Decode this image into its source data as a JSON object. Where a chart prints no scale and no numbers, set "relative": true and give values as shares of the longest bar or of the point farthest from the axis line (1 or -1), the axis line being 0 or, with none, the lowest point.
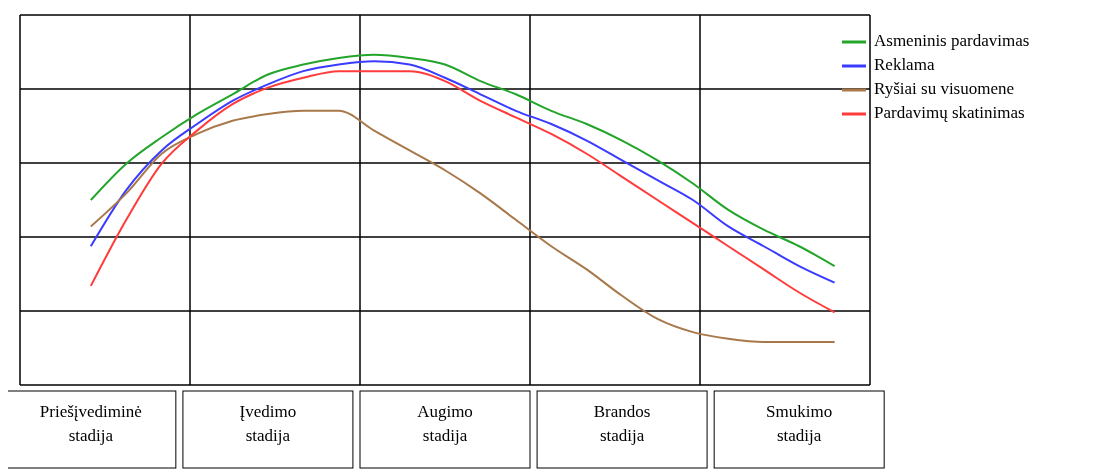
{
  "chart_data": {
    "type": "line",
    "relative": true,
    "grid": true,
    "legend": "top right",
    "categories": [
      null,
      null,
      "Priešįvediminė stadija",
      null,
      null,
      null,
      null,
      "Įvedimo stadija",
      null,
      null,
      null,
      null,
      "Augimo stadija",
      null,
      null,
      null,
      null,
      "Brandos stadija",
      null,
      null,
      null,
      null,
      "Smukimo stadija",
      null,
      null
    ],
    "series": [
      {
        "name": "Asmeninis pardavimas",
        "color": "#22a52a",
        "values": [
          null,
          null,
          0.56,
          0.67,
          0.75,
          0.82,
          0.88,
          0.94,
          0.97,
          0.99,
          1,
          0.99,
          0.97,
          0.92,
          0.88,
          0.83,
          0.79,
          0.74,
          0.68,
          0.61,
          0.53,
          0.47,
          0.42,
          0.36,
          null
        ]
      },
      {
        "name": "Reklama",
        "color": "#3b3bff",
        "values": [
          null,
          null,
          0.42,
          0.59,
          0.71,
          0.79,
          0.86,
          0.91,
          0.95,
          0.97,
          0.98,
          0.97,
          0.93,
          0.88,
          0.83,
          0.79,
          0.74,
          0.68,
          0.62,
          0.56,
          0.48,
          0.42,
          0.36,
          0.31,
          null
        ]
      },
      {
        "name": "Ryšiai su visuomene",
        "color": "#a8784a",
        "values": [
          null,
          null,
          0.48,
          0.58,
          0.7,
          0.76,
          0.8,
          0.82,
          0.83,
          0.83,
          0.77,
          0.71,
          0.65,
          0.58,
          0.5,
          0.42,
          0.35,
          0.27,
          0.2,
          0.16,
          0.14,
          0.13,
          0.13,
          0.13,
          null
        ]
      },
      {
        "name": "Pardavimų skatinimas",
        "color": "#ff3b3b",
        "values": [
          null,
          null,
          0.3,
          0.5,
          0.67,
          0.77,
          0.85,
          0.9,
          0.93,
          0.95,
          0.95,
          0.95,
          0.92,
          0.86,
          0.81,
          0.76,
          0.7,
          0.63,
          0.56,
          0.49,
          0.42,
          0.35,
          0.28,
          0.22,
          null
        ]
      }
    ]
  }
}
